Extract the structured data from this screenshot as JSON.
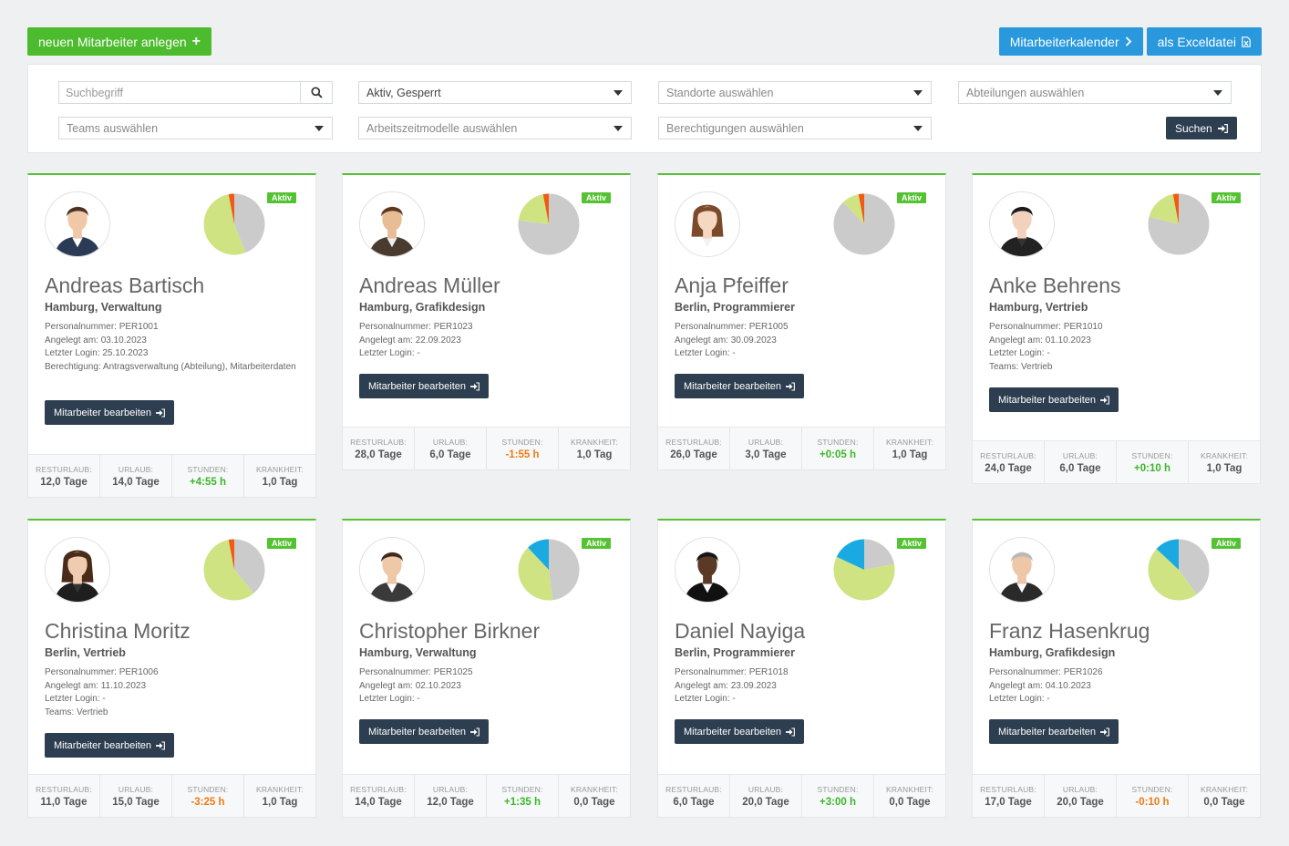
{
  "toolbar": {
    "new_employee_label": "neuen Mitarbeiter anlegen",
    "calendar_label": "Mitarbeiterkalender",
    "excel_label": "als Exceldatei"
  },
  "filters": {
    "search_placeholder": "Suchbegriff",
    "status_value": "Aktiv, Gesperrt",
    "locations_placeholder": "Standorte auswählen",
    "departments_placeholder": "Abteilungen auswählen",
    "teams_placeholder": "Teams auswählen",
    "worktime_placeholder": "Arbeitszeitmodelle auswählen",
    "permissions_placeholder": "Berechtigungen auswählen",
    "search_button": "Suchen"
  },
  "labels": {
    "status": "Aktiv",
    "edit_button": "Mitarbeiter bearbeiten",
    "stat_rest": "RESTURLAUB:",
    "stat_vacation": "URLAUB:",
    "stat_hours": "STUNDEN:",
    "stat_sick": "KRANKHEIT:"
  },
  "colors": {
    "green": "#4cbb2d",
    "blue": "#2a98dc",
    "dark": "#2d3e50",
    "pie_green": "#cfe383",
    "pie_grey": "#cbcbcb",
    "pie_orange": "#f05a12",
    "pie_blue": "#1aaae1"
  },
  "employees": [
    {
      "name": "Andreas Bartisch",
      "location": "Hamburg, Verwaltung",
      "details": [
        "Personalnummer: PER1001",
        "Angelegt am: 03.10.2023",
        "Letzter Login: 25.10.2023",
        "Berechtigung: Antragsverwaltung (Abteilung), Mitarbeiterdaten"
      ],
      "pie": [
        {
          "v": 0.44,
          "c": "grey"
        },
        {
          "v": 0.53,
          "c": "green"
        },
        {
          "v": 0.03,
          "c": "orange"
        }
      ],
      "rest": "12,0 Tage",
      "vacation": "14,0 Tage",
      "hours": "+4:55 h",
      "sick": "1,0 Tag"
    },
    {
      "name": "Andreas Müller",
      "location": "Hamburg, Grafikdesign",
      "details": [
        "Personalnummer: PER1023",
        "Angelegt am: 22.09.2023",
        "Letzter Login: -"
      ],
      "pie": [
        {
          "v": 0.77,
          "c": "grey"
        },
        {
          "v": 0.2,
          "c": "green"
        },
        {
          "v": 0.03,
          "c": "orange"
        }
      ],
      "rest": "28,0 Tage",
      "vacation": "6,0 Tage",
      "hours": "-1:55 h",
      "sick": "1,0 Tag"
    },
    {
      "name": "Anja Pfeiffer",
      "location": "Berlin, Programmierer",
      "details": [
        "Personalnummer: PER1005",
        "Angelegt am: 30.09.2023",
        "Letzter Login: -"
      ],
      "pie": [
        {
          "v": 0.88,
          "c": "grey"
        },
        {
          "v": 0.09,
          "c": "green"
        },
        {
          "v": 0.03,
          "c": "orange"
        }
      ],
      "rest": "26,0 Tage",
      "vacation": "3,0 Tage",
      "hours": "+0:05 h",
      "sick": "1,0 Tag"
    },
    {
      "name": "Anke Behrens",
      "location": "Hamburg, Vertrieb",
      "details": [
        "Personalnummer: PER1010",
        "Angelegt am: 01.10.2023",
        "Letzter Login: -",
        "Teams: Vertrieb"
      ],
      "pie": [
        {
          "v": 0.79,
          "c": "grey"
        },
        {
          "v": 0.18,
          "c": "green"
        },
        {
          "v": 0.03,
          "c": "orange"
        }
      ],
      "rest": "24,0 Tage",
      "vacation": "6,0 Tage",
      "hours": "+0:10 h",
      "sick": "1,0 Tag"
    },
    {
      "name": "Christina Moritz",
      "location": "Berlin, Vertrieb",
      "details": [
        "Personalnummer: PER1006",
        "Angelegt am: 11.10.2023",
        "Letzter Login: -",
        "Teams: Vertrieb"
      ],
      "pie": [
        {
          "v": 0.39,
          "c": "grey"
        },
        {
          "v": 0.58,
          "c": "green"
        },
        {
          "v": 0.03,
          "c": "orange"
        }
      ],
      "rest": "11,0 Tage",
      "vacation": "15,0 Tage",
      "hours": "-3:25 h",
      "sick": "1,0 Tag"
    },
    {
      "name": "Christopher Birkner",
      "location": "Hamburg, Verwaltung",
      "details": [
        "Personalnummer: PER1025",
        "Angelegt am: 02.10.2023",
        "Letzter Login: -"
      ],
      "pie": [
        {
          "v": 0.48,
          "c": "grey"
        },
        {
          "v": 0.4,
          "c": "green"
        },
        {
          "v": 0.12,
          "c": "blue"
        }
      ],
      "rest": "14,0 Tage",
      "vacation": "12,0 Tage",
      "hours": "+1:35 h",
      "sick": "0,0 Tage"
    },
    {
      "name": "Daniel Nayiga",
      "location": "Berlin, Programmierer",
      "details": [
        "Personalnummer: PER1018",
        "Angelegt am: 23.09.2023",
        "Letzter Login: -"
      ],
      "pie": [
        {
          "v": 0.22,
          "c": "grey"
        },
        {
          "v": 0.6,
          "c": "green"
        },
        {
          "v": 0.18,
          "c": "blue"
        }
      ],
      "rest": "6,0 Tage",
      "vacation": "20,0 Tage",
      "hours": "+3:00 h",
      "sick": "0,0 Tage"
    },
    {
      "name": "Franz Hasenkrug",
      "location": "Hamburg, Grafikdesign",
      "details": [
        "Personalnummer: PER1026",
        "Angelegt am: 04.10.2023",
        "Letzter Login: -"
      ],
      "pie": [
        {
          "v": 0.4,
          "c": "grey"
        },
        {
          "v": 0.47,
          "c": "green"
        },
        {
          "v": 0.13,
          "c": "blue"
        }
      ],
      "rest": "17,0 Tage",
      "vacation": "20,0 Tage",
      "hours": "-0:10 h",
      "sick": "0,0 Tage"
    }
  ]
}
